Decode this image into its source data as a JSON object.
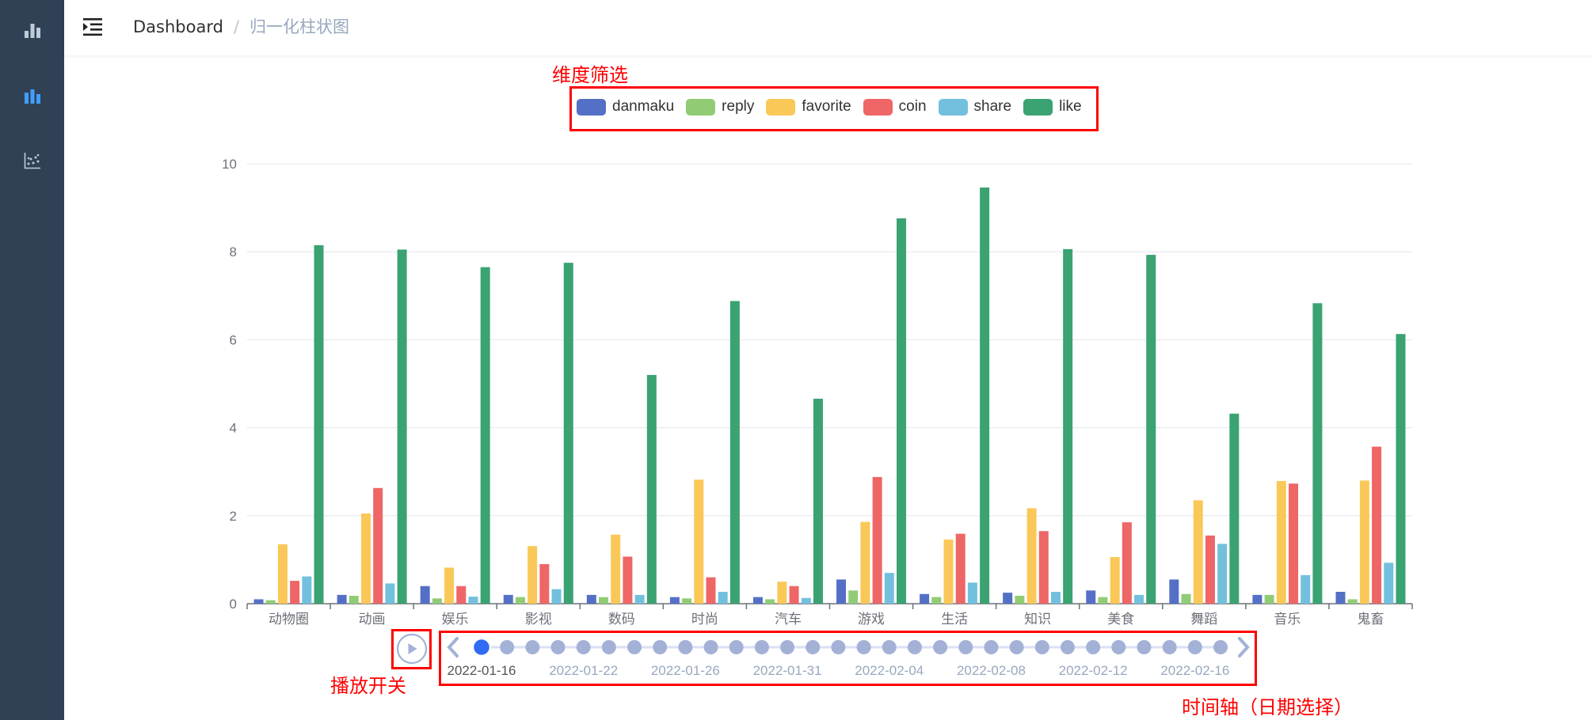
{
  "header": {
    "breadcrumb": [
      "Dashboard",
      "归一化柱状图"
    ],
    "separator": "/"
  },
  "sidebar": {
    "items": [
      {
        "icon": "bar-chart-icon",
        "active": false
      },
      {
        "icon": "bar-chart-icon",
        "active": true
      },
      {
        "icon": "scatter-chart-icon",
        "active": false
      }
    ]
  },
  "annotations": {
    "legend_label": "维度筛选",
    "play_label": "播放开关",
    "timeline_label": "时间轴（日期选择）"
  },
  "timeline": {
    "current_date": "2022-01-16",
    "labels": [
      "2022-01-16",
      "2022-01-22",
      "2022-01-26",
      "2022-01-31",
      "2022-02-04",
      "2022-02-08",
      "2022-02-12",
      "2022-02-16"
    ],
    "point_count": 30,
    "active_index": 0,
    "playing": false
  },
  "chart_data": {
    "type": "bar",
    "title": "",
    "xlabel": "",
    "ylabel": "",
    "ylim": [
      0,
      10
    ],
    "yticks": [
      0,
      2,
      4,
      6,
      8,
      10
    ],
    "grid": true,
    "legend_position": "top-center",
    "categories": [
      "动物圈",
      "动画",
      "娱乐",
      "影视",
      "数码",
      "时尚",
      "汽车",
      "游戏",
      "生活",
      "知识",
      "美食",
      "舞蹈",
      "音乐",
      "鬼畜"
    ],
    "series": [
      {
        "name": "danmaku",
        "color": "#5470c6",
        "values": [
          0.1,
          0.2,
          0.4,
          0.2,
          0.2,
          0.15,
          0.15,
          0.55,
          0.22,
          0.25,
          0.3,
          0.55,
          0.2,
          0.27
        ]
      },
      {
        "name": "reply",
        "color": "#91cc75",
        "values": [
          0.08,
          0.18,
          0.12,
          0.15,
          0.15,
          0.12,
          0.1,
          0.3,
          0.15,
          0.18,
          0.15,
          0.22,
          0.2,
          0.1
        ]
      },
      {
        "name": "favorite",
        "color": "#fac858",
        "values": [
          1.35,
          2.05,
          0.82,
          1.31,
          1.57,
          2.82,
          0.5,
          1.86,
          1.46,
          2.17,
          1.06,
          2.35,
          2.79,
          2.8
        ]
      },
      {
        "name": "coin",
        "color": "#ee6666",
        "values": [
          0.52,
          2.63,
          0.4,
          0.9,
          1.07,
          0.6,
          0.4,
          2.88,
          1.59,
          1.65,
          1.85,
          1.55,
          2.73,
          3.57
        ]
      },
      {
        "name": "share",
        "color": "#73c0de",
        "values": [
          0.62,
          0.46,
          0.16,
          0.33,
          0.2,
          0.27,
          0.13,
          0.7,
          0.48,
          0.27,
          0.2,
          1.36,
          0.65,
          0.93
        ]
      },
      {
        "name": "like",
        "color": "#3ba272",
        "values": [
          8.15,
          8.05,
          7.65,
          7.75,
          5.2,
          6.88,
          4.66,
          8.76,
          9.46,
          8.06,
          7.93,
          4.32,
          6.83,
          6.13
        ]
      }
    ]
  }
}
